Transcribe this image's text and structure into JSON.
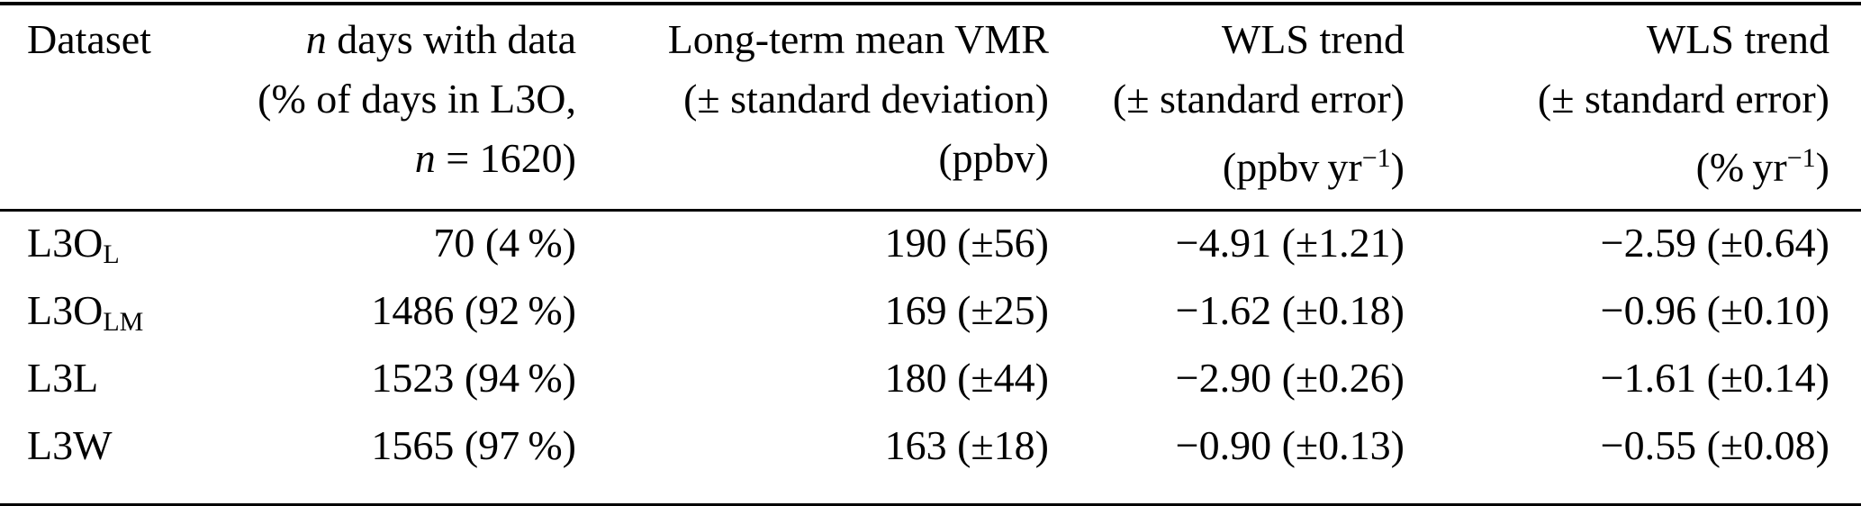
{
  "table": {
    "header": {
      "col1": {
        "line1": "Dataset"
      },
      "col2": {
        "line1_italic": "n",
        "line1_rest": " days with data",
        "line2": "(% of days in L3O,",
        "line3_italic": "n",
        "line3_rest": " = 1620)"
      },
      "col3": {
        "line1": "Long-term mean VMR",
        "line2": "(± standard deviation)",
        "line3": "(ppbv)"
      },
      "col4": {
        "line1": "WLS trend",
        "line2": "(± standard error)",
        "line3_pre": "(ppbv yr",
        "line3_sup": "−1",
        "line3_post": ")"
      },
      "col5": {
        "line1": "WLS trend",
        "line2": "(± standard error)",
        "line3_pre": "(% yr",
        "line3_sup": "−1",
        "line3_post": ")"
      }
    },
    "rows": [
      {
        "dataset_base": "L3O",
        "dataset_sub": "L",
        "n_days": "70 (4 %)",
        "mean_vmr": "190 (±56)",
        "wls_trend_ppbv": "−4.91 (±1.21)",
        "wls_trend_pct": "−2.59 (±0.64)"
      },
      {
        "dataset_base": "L3O",
        "dataset_sub": "LM",
        "n_days": "1486 (92 %)",
        "mean_vmr": "169 (±25)",
        "wls_trend_ppbv": "−1.62 (±0.18)",
        "wls_trend_pct": "−0.96 (±0.10)"
      },
      {
        "dataset_base": "L3L",
        "dataset_sub": "",
        "n_days": "1523 (94 %)",
        "mean_vmr": "180 (±44)",
        "wls_trend_ppbv": "−2.90 (±0.26)",
        "wls_trend_pct": "−1.61 (±0.14)"
      },
      {
        "dataset_base": "L3W",
        "dataset_sub": "",
        "n_days": "1565 (97 %)",
        "mean_vmr": "163 (±18)",
        "wls_trend_ppbv": "−0.90 (±0.13)",
        "wls_trend_pct": "−0.55 (±0.08)"
      }
    ]
  },
  "colors": {
    "text": "#000000",
    "background": "#ffffff",
    "rule": "#000000"
  }
}
